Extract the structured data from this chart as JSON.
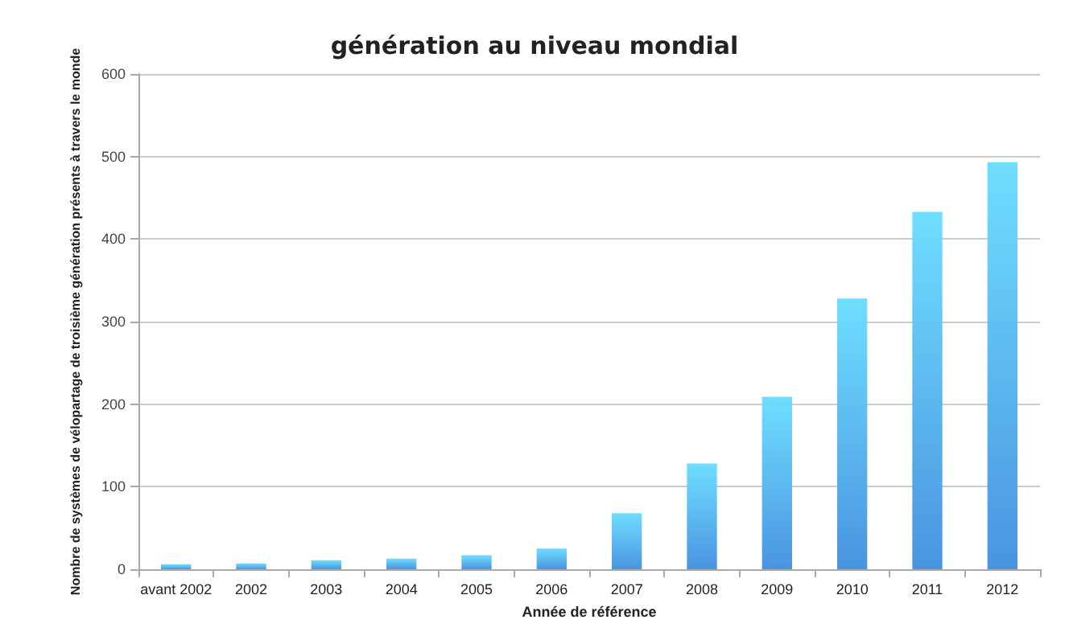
{
  "chart_data": {
    "type": "bar",
    "title": "génération au niveau mondial",
    "xlabel": "Année de référence",
    "ylabel": "Nombre de systèmes de vélopartage de troisième génération présents à travers le monde",
    "categories": [
      "avant 2002",
      "2002",
      "2003",
      "2004",
      "2005",
      "2006",
      "2007",
      "2008",
      "2009",
      "2010",
      "2011",
      "2012"
    ],
    "values": [
      6,
      7,
      11,
      13,
      17,
      25,
      68,
      128,
      209,
      328,
      433,
      493
    ],
    "color": "#4a94e0",
    "ylim": [
      0,
      600
    ],
    "yticks": [
      0,
      100,
      200,
      300,
      400,
      500,
      600
    ],
    "grid": "y"
  }
}
